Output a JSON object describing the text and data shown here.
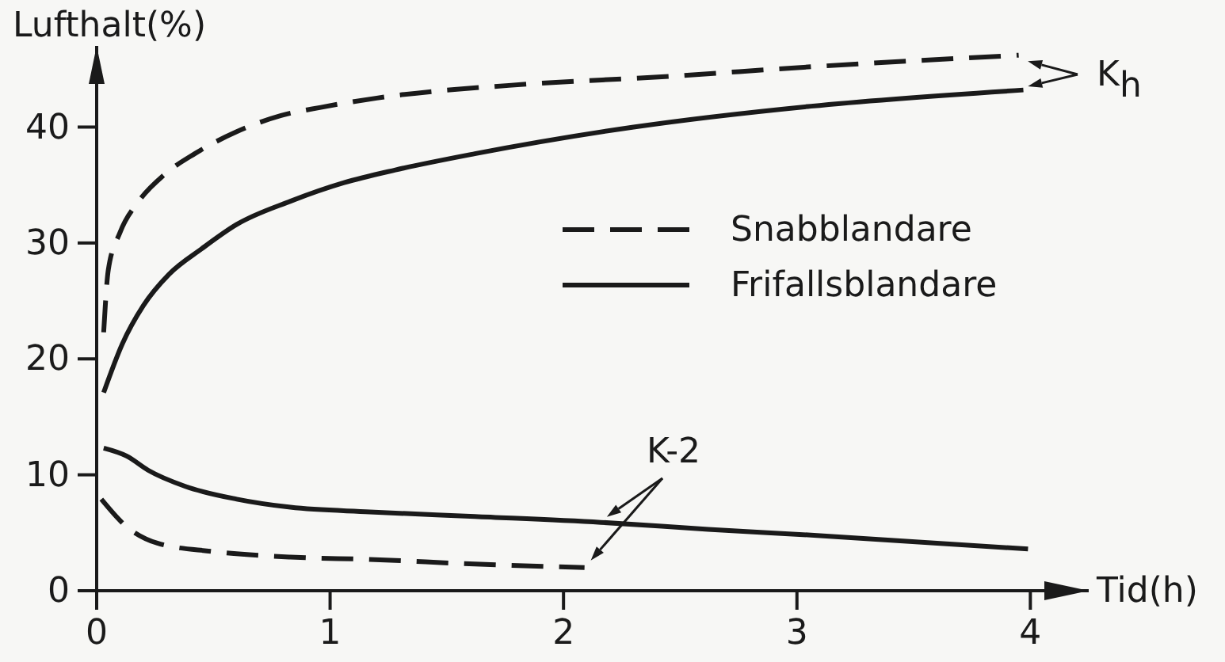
{
  "chart_data": {
    "type": "line",
    "xlabel": "Tid(h)",
    "ylabel": "Lufthalt(%)",
    "xlim": [
      0,
      4.25
    ],
    "ylim": [
      0,
      47
    ],
    "xticks": [
      0,
      1,
      2,
      3,
      4
    ],
    "yticks": [
      0,
      10,
      20,
      30,
      40
    ],
    "legend": "right",
    "series": [
      {
        "name": "Snabblandare",
        "color": "#1a1a1a",
        "line_style": "dashed",
        "x": [
          0.03,
          0.05,
          0.1,
          0.18,
          0.29,
          0.42,
          0.6,
          0.79,
          0.96,
          1.2,
          1.84,
          2.39,
          3.06,
          3.95
        ],
        "values": [
          22.3,
          27.7,
          30.9,
          33.6,
          35.9,
          37.7,
          39.6,
          41,
          41.7,
          42.5,
          43.7,
          44.3,
          45.2,
          46.2
        ]
      },
      {
        "name": "Frifallsblandare",
        "color": "#1a1a1a",
        "line_style": "solid",
        "x": [
          0.03,
          0.11,
          0.2,
          0.31,
          0.45,
          0.6,
          0.83,
          1.06,
          1.28,
          1.62,
          2.3,
          3.06,
          3.97
        ],
        "values": [
          17.1,
          21.3,
          24.6,
          27.3,
          29.5,
          31.6,
          33.6,
          35.2,
          36.3,
          37.7,
          40,
          41.8,
          43.2
        ]
      },
      {
        "color": "#1a1a1a",
        "line_style": "solid",
        "x": [
          0.03,
          0.13,
          0.22,
          0.38,
          0.6,
          0.83,
          1.17,
          1.62,
          2.16,
          2.62,
          3.06,
          3.99
        ],
        "values": [
          12.3,
          11.6,
          10.4,
          9,
          7.9,
          7.2,
          6.8,
          6.4,
          5.9,
          5.3,
          4.8,
          3.6
        ]
      },
      {
        "color": "#1a1a1a",
        "line_style": "dashed",
        "x": [
          0.02,
          0.13,
          0.26,
          0.49,
          0.83,
          1.17,
          1.62,
          2.09
        ],
        "values": [
          7.9,
          5.5,
          4.1,
          3.4,
          2.9,
          2.7,
          2.3,
          2.0
        ]
      }
    ],
    "annotations": [
      "K$_{h}$",
      "K-2"
    ]
  }
}
